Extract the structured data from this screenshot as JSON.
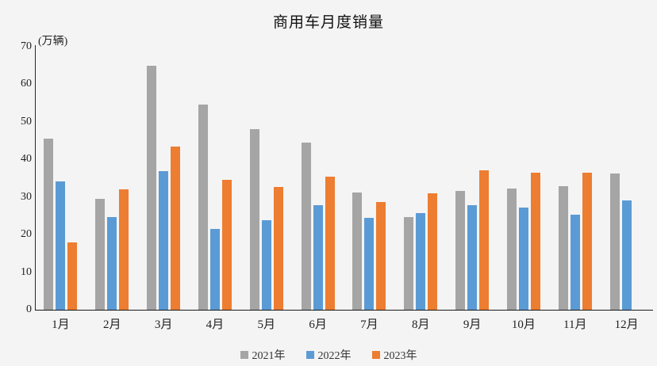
{
  "title": "商用车月度销量",
  "unit_label": "(万辆)",
  "chart_data": {
    "type": "bar",
    "title": "商用车月度销量",
    "ylabel": "(万辆)",
    "xlabel": "",
    "categories": [
      "1月",
      "2月",
      "3月",
      "4月",
      "5月",
      "6月",
      "7月",
      "8月",
      "9月",
      "10月",
      "11月",
      "12月"
    ],
    "series": [
      {
        "name": "2021年",
        "color": "#A5A5A5",
        "values": [
          45.6,
          29.6,
          65.0,
          54.7,
          48.0,
          44.4,
          31.2,
          24.6,
          31.6,
          32.3,
          32.9,
          36.2
        ]
      },
      {
        "name": "2022年",
        "color": "#5B9BD5",
        "values": [
          34.1,
          24.7,
          36.8,
          21.5,
          23.8,
          27.9,
          24.4,
          25.7,
          27.8,
          27.2,
          25.4,
          29.1
        ]
      },
      {
        "name": "2023年",
        "color": "#ED7D31",
        "values": [
          17.9,
          32.1,
          43.4,
          34.6,
          32.7,
          35.4,
          28.6,
          31.0,
          37.2,
          36.4,
          36.4,
          null
        ]
      }
    ],
    "ylim": [
      0,
      70
    ],
    "y_ticks": [
      0,
      10,
      20,
      30,
      40,
      50,
      60,
      70
    ],
    "grid": false,
    "legend_position": "bottom",
    "background_color": "#F4F4F4"
  }
}
